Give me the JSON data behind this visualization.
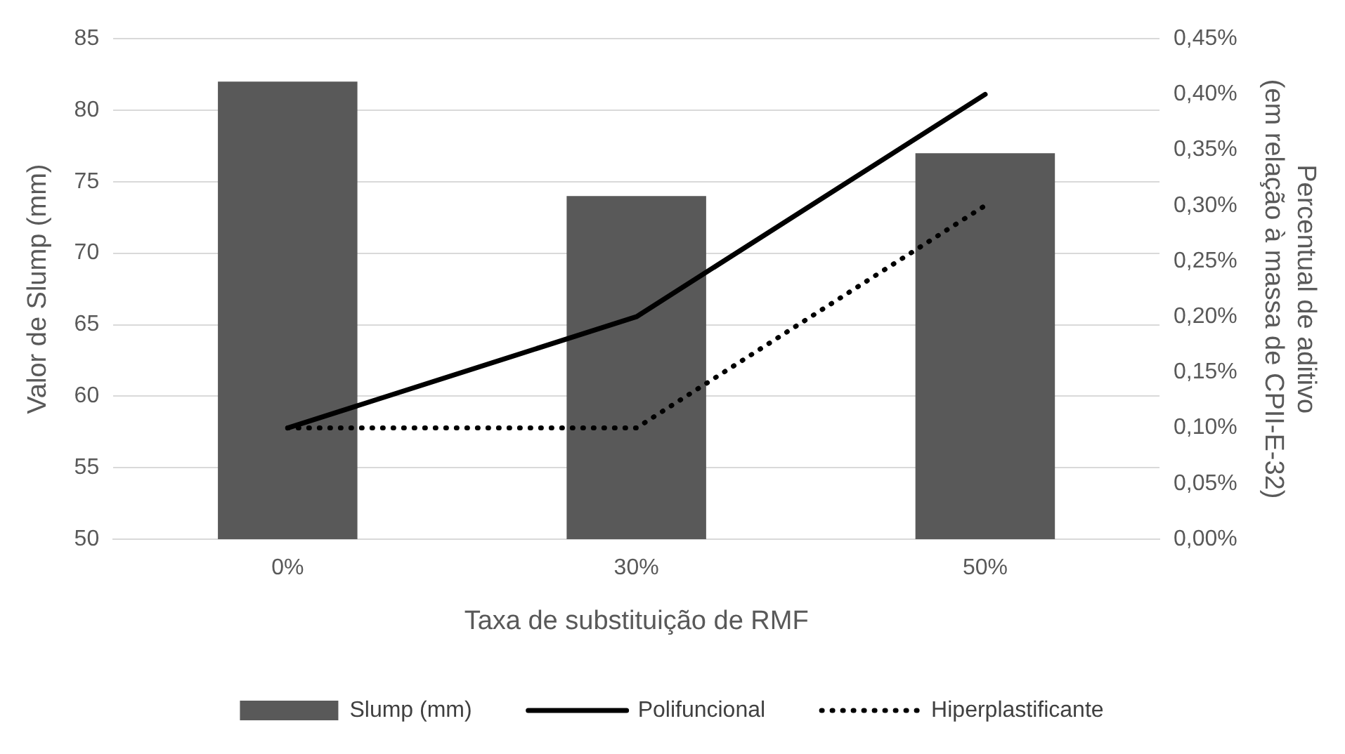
{
  "chart_data": {
    "type": "bar",
    "xlabel": "Taxa de substituição de RMF",
    "ylabel": "Valor de Slump (mm)",
    "y2label": "Percentual de aditivo\n(em relação à massa de CPII-E-32)",
    "categories": [
      "0%",
      "30%",
      "50%"
    ],
    "series": [
      {
        "name": "Slump (mm)",
        "color": "#595959",
        "values": [
          82,
          74,
          77
        ]
      },
      {
        "name": "Polifuncional",
        "type": "line",
        "axis": "y2",
        "color": "#000000",
        "line_style": "solid",
        "values": [
          0.1,
          0.2,
          0.4
        ]
      },
      {
        "name": "Hiperplastificante",
        "type": "line",
        "axis": "y2",
        "color": "#000000",
        "line_style": "dotted",
        "values": [
          0.1,
          0.1,
          0.3
        ]
      }
    ],
    "ylim": [
      50,
      85
    ],
    "yticks": [
      50,
      55,
      60,
      65,
      70,
      75,
      80,
      85
    ],
    "y2lim": [
      0,
      0.45
    ],
    "y2ticks": [
      {
        "value": 0,
        "label": "0,00%"
      },
      {
        "value": 0.05,
        "label": "0,05%"
      },
      {
        "value": 0.1,
        "label": "0,10%"
      },
      {
        "value": 0.15,
        "label": "0,15%"
      },
      {
        "value": 0.2,
        "label": "0,20%"
      },
      {
        "value": 0.25,
        "label": "0,25%"
      },
      {
        "value": 0.3,
        "label": "0,30%"
      },
      {
        "value": 0.35,
        "label": "0,35%"
      },
      {
        "value": 0.4,
        "label": "0,40%"
      },
      {
        "value": 0.45,
        "label": "0,45%"
      }
    ],
    "grid": "y",
    "legend": "bottom",
    "marker": "none"
  }
}
